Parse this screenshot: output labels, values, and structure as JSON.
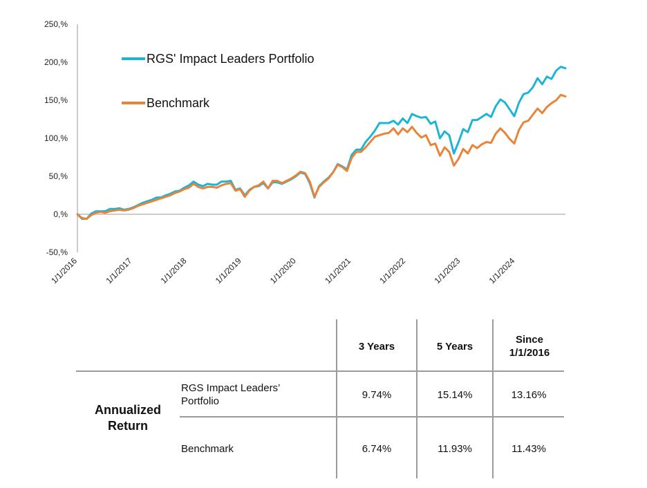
{
  "chart_data": {
    "type": "line",
    "ylim": [
      -50,
      250
    ],
    "yticks": [
      -50,
      0,
      50,
      100,
      150,
      200,
      250
    ],
    "ytick_labels": [
      "-50,%",
      "0,%",
      "50,%",
      "100,%",
      "150,%",
      "200,%",
      "250,%"
    ],
    "x_start": "2016-01-01",
    "x_end": "2024-12-01",
    "xticks": [
      "2016-01-01",
      "2017-01-01",
      "2018-01-01",
      "2019-01-01",
      "2020-01-01",
      "2021-01-01",
      "2022-01-01",
      "2023-01-01",
      "2024-01-01"
    ],
    "xtick_labels": [
      "1/1/2016",
      "1/1/2017",
      "1/1/2018",
      "1/1/2019",
      "1/1/2020",
      "1/1/2021",
      "1/1/2022",
      "1/1/2023",
      "1/1/2024"
    ],
    "legend_position": "top-left",
    "grid": false,
    "series": [
      {
        "name": "RGS' Impact Leaders Portfolio",
        "color": "#1eb4d6",
        "values": [
          0,
          -6,
          -6,
          1,
          4,
          4,
          4,
          7,
          7,
          8,
          6,
          7,
          9,
          12,
          15,
          17,
          19,
          22,
          22,
          25,
          27,
          30,
          31,
          35,
          38,
          43,
          39,
          37,
          40,
          39,
          39,
          43,
          43,
          44,
          32,
          34,
          25,
          32,
          36,
          37,
          41,
          34,
          42,
          42,
          40,
          43,
          46,
          50,
          55,
          53,
          41,
          22,
          37,
          43,
          48,
          55,
          66,
          63,
          59,
          78,
          85,
          85,
          95,
          102,
          110,
          120,
          120,
          120,
          123,
          118,
          126,
          120,
          132,
          129,
          127,
          128,
          119,
          122,
          100,
          109,
          104,
          80,
          95,
          112,
          108,
          124,
          124,
          128,
          132,
          128,
          142,
          151,
          147,
          138,
          129,
          147,
          158,
          160,
          167,
          179,
          171,
          181,
          178,
          189,
          194,
          192
        ]
      },
      {
        "name": "Benchmark",
        "color": "#e8843a",
        "values": [
          0,
          -5,
          -6,
          -1,
          2,
          3,
          2,
          4,
          5,
          6,
          5,
          6,
          8,
          11,
          13,
          15,
          17,
          19,
          21,
          23,
          25,
          28,
          30,
          33,
          35,
          40,
          36,
          34,
          36,
          36,
          35,
          38,
          40,
          41,
          31,
          33,
          23,
          31,
          36,
          38,
          43,
          34,
          44,
          44,
          41,
          44,
          47,
          51,
          56,
          54,
          43,
          23,
          36,
          42,
          47,
          55,
          65,
          62,
          57,
          74,
          82,
          82,
          88,
          95,
          102,
          104,
          106,
          107,
          113,
          105,
          113,
          108,
          115,
          107,
          101,
          104,
          91,
          93,
          77,
          88,
          82,
          64,
          73,
          86,
          80,
          91,
          87,
          92,
          95,
          94,
          106,
          113,
          107,
          99,
          93,
          111,
          121,
          123,
          131,
          139,
          133,
          141,
          146,
          150,
          157,
          155
        ]
      }
    ]
  },
  "table": {
    "col_headers": [
      "3 Years",
      "5 Years",
      "Since 1/1/2016"
    ],
    "row_group": "Annualized Return",
    "rows": [
      {
        "label": "RGS Impact Leaders’ Portfolio",
        "values": [
          "9.74%",
          "15.14%",
          "13.16%"
        ]
      },
      {
        "label": "Benchmark",
        "values": [
          "6.74%",
          "11.93%",
          "11.43%"
        ]
      }
    ]
  }
}
